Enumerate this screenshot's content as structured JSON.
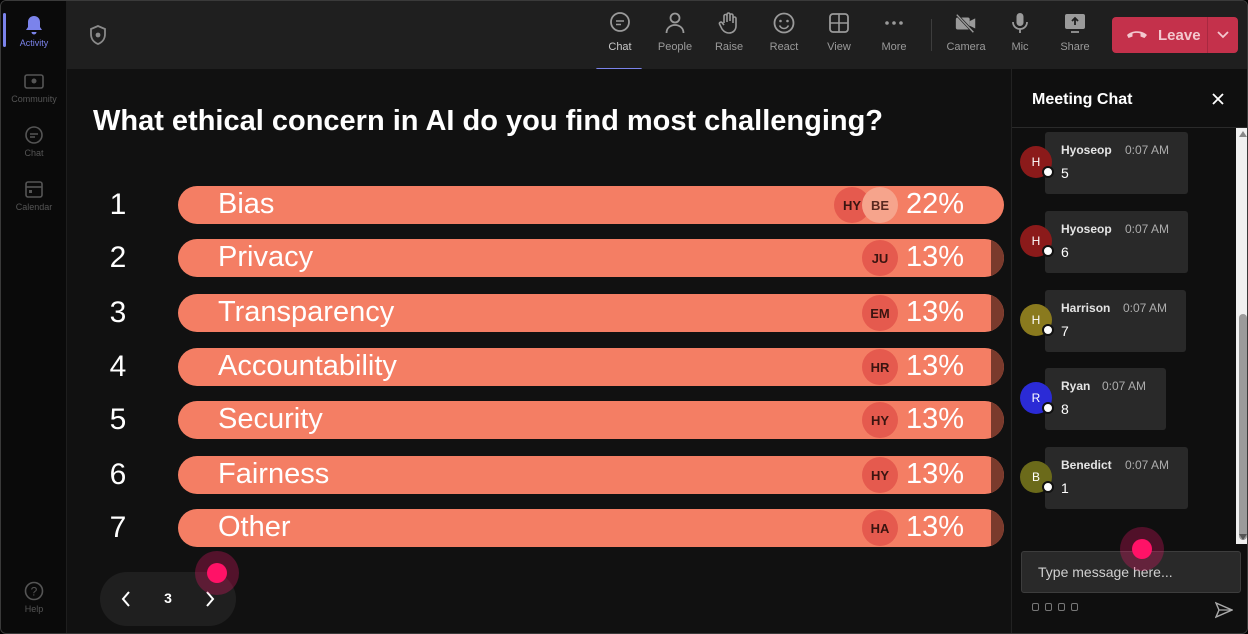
{
  "rail": {
    "items": [
      {
        "label": "Activity",
        "icon": "bell-icon",
        "active": true
      },
      {
        "label": "Community",
        "icon": "community-icon",
        "active": false
      },
      {
        "label": "Chat",
        "icon": "chat-icon",
        "active": false
      },
      {
        "label": "Calendar",
        "icon": "calendar-icon",
        "active": false
      }
    ],
    "help": {
      "label": "Help",
      "icon": "help-icon"
    }
  },
  "toolbar": {
    "buttons": [
      {
        "label": "Chat",
        "icon": "chat-bubble-icon",
        "active": true
      },
      {
        "label": "People",
        "icon": "people-icon",
        "active": false
      },
      {
        "label": "Raise",
        "icon": "raise-hand-icon",
        "active": false
      },
      {
        "label": "React",
        "icon": "smiley-icon",
        "active": false
      },
      {
        "label": "View",
        "icon": "view-grid-icon",
        "active": false
      },
      {
        "label": "More",
        "icon": "more-dots-icon",
        "active": false
      },
      {
        "label": "Camera",
        "icon": "camera-off-icon",
        "active": false
      },
      {
        "label": "Mic",
        "icon": "mic-icon",
        "active": false
      },
      {
        "label": "Share",
        "icon": "share-screen-icon",
        "active": false
      }
    ],
    "leave_label": "Leave",
    "leave_color": "#c4314b"
  },
  "poll": {
    "question": "What ethical concern in AI do you find most challenging?",
    "bar_color": "#f47e64",
    "options": [
      {
        "rank": "1",
        "label": "Bias",
        "percent": "22%",
        "value": 22,
        "voters": [
          "HY",
          "BE"
        ]
      },
      {
        "rank": "2",
        "label": "Privacy",
        "percent": "13%",
        "value": 13,
        "voters": [
          "JU"
        ]
      },
      {
        "rank": "3",
        "label": "Transparency",
        "percent": "13%",
        "value": 13,
        "voters": [
          "EM"
        ]
      },
      {
        "rank": "4",
        "label": "Accountability",
        "percent": "13%",
        "value": 13,
        "voters": [
          "HR"
        ]
      },
      {
        "rank": "5",
        "label": "Security",
        "percent": "13%",
        "value": 13,
        "voters": [
          "HY"
        ]
      },
      {
        "rank": "6",
        "label": "Fairness",
        "percent": "13%",
        "value": 13,
        "voters": [
          "HY"
        ]
      },
      {
        "rank": "7",
        "label": "Other",
        "percent": "13%",
        "value": 13,
        "voters": [
          "HA"
        ]
      }
    ],
    "pager": {
      "page": "3"
    }
  },
  "chat": {
    "title": "Meeting Chat",
    "messages": [
      {
        "initial": "H",
        "name": "Hyoseop",
        "time": "0:07 AM",
        "text": "5",
        "color": "#8b1a1a"
      },
      {
        "initial": "H",
        "name": "Hyoseop",
        "time": "0:07 AM",
        "text": "6",
        "color": "#8b1a1a"
      },
      {
        "initial": "H",
        "name": "Harrison",
        "time": "0:07 AM",
        "text": "7",
        "color": "#8a7a1e"
      },
      {
        "initial": "R",
        "name": "Ryan",
        "time": "0:07 AM",
        "text": "8",
        "color": "#2b2bd6"
      },
      {
        "initial": "B",
        "name": "Benedict",
        "time": "0:07 AM",
        "text": "1",
        "color": "#6b6a1a"
      }
    ],
    "compose_placeholder": "Type message here..."
  }
}
